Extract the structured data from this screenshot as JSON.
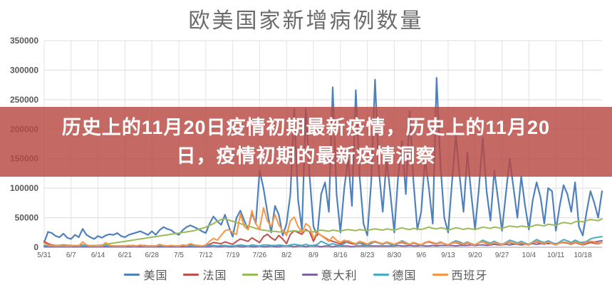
{
  "title": "欧美国家新增病例数量",
  "banner": {
    "line1": "历史上的11月20日疫情初期最新疫情，历史上的11月20",
    "line2": "日，疫情初期的最新疫情洞察",
    "background_color": "#b84842",
    "text_color": "#ffffff"
  },
  "axis_style": {
    "label_color": "#595959",
    "gridline_color": "#dcdcdc",
    "vertical_gridline_color": "#e3e3e3",
    "zero_line_color": "#bdbdbd"
  },
  "chart_data": {
    "type": "line",
    "title": "欧美国家新增病例数量",
    "xlabel": "",
    "ylabel": "",
    "ylim": [
      0,
      350000
    ],
    "y_ticks": [
      0,
      50000,
      100000,
      150000,
      200000,
      250000,
      300000,
      350000
    ],
    "grid": true,
    "legend_position": "bottom",
    "x_tick_labels": [
      "5/31",
      "6/7",
      "6/14",
      "6/21",
      "6/28",
      "7/5",
      "7/12",
      "7/19",
      "7/26",
      "8/2",
      "8/9",
      "8/16",
      "8/23",
      "8/30",
      "9/6",
      "9/13",
      "9/20",
      "9/27",
      "10/4",
      "10/11",
      "10/18"
    ],
    "x_tick_interval_days": 7,
    "series": [
      {
        "name": "美国",
        "color": "#4F81BD",
        "values": [
          8000,
          26000,
          24000,
          19000,
          17000,
          23000,
          16000,
          14000,
          21000,
          17000,
          31000,
          21000,
          17000,
          14000,
          19000,
          16000,
          20000,
          22000,
          21000,
          24000,
          19000,
          17000,
          21000,
          23000,
          25000,
          27000,
          24000,
          21000,
          27000,
          21000,
          29000,
          34000,
          31000,
          29000,
          24000,
          21000,
          29000,
          34000,
          37000,
          34000,
          31000,
          27000,
          24000,
          40000,
          52000,
          44000,
          38000,
          55000,
          35000,
          18000,
          50000,
          62000,
          45000,
          30000,
          58000,
          40000,
          130000,
          100000,
          60000,
          25000,
          70000,
          55000,
          20000,
          40000,
          90000,
          234000,
          80000,
          30000,
          235000,
          120000,
          35000,
          20000,
          90000,
          110000,
          60000,
          271000,
          90000,
          25000,
          100000,
          150000,
          70000,
          266000,
          120000,
          40000,
          20000,
          110000,
          284000,
          130000,
          60000,
          150000,
          90000,
          25000,
          120000,
          180000,
          90000,
          230000,
          110000,
          30000,
          60000,
          150000,
          100000,
          40000,
          287000,
          140000,
          50000,
          25000,
          110000,
          190000,
          120000,
          60000,
          160000,
          90000,
          30000,
          100000,
          185000,
          95000,
          45000,
          130000,
          80000,
          28000,
          90000,
          150000,
          100000,
          50000,
          120000,
          70000,
          30000,
          80000,
          110000,
          85000,
          40000,
          100000,
          95000,
          28000,
          70000,
          105000,
          90000,
          60000,
          110000,
          35000,
          20000,
          60000,
          95000,
          75000,
          50000,
          95000
        ]
      },
      {
        "name": "法国",
        "color": "#C0504D",
        "values": [
          10000,
          6000,
          4000,
          3000,
          3000,
          4000,
          3000,
          3000,
          2000,
          3000,
          4000,
          3000,
          2000,
          2000,
          2000,
          2000,
          3000,
          3000,
          2000,
          2000,
          2000,
          2000,
          2000,
          3000,
          2000,
          2000,
          3000,
          2000,
          2000,
          2000,
          3000,
          3000,
          2000,
          2000,
          2000,
          2000,
          3000,
          3000,
          4000,
          3000,
          3000,
          2000,
          3000,
          5000,
          8000,
          7000,
          6000,
          9000,
          7000,
          5000,
          10000,
          14000,
          12000,
          10000,
          16000,
          12000,
          8000,
          18000,
          22000,
          16000,
          12000,
          20000,
          14000,
          6000,
          22000,
          28000,
          25000,
          22000,
          30000,
          26000,
          10000,
          24000,
          20000,
          16000,
          12000,
          10000,
          8000,
          5000,
          9000,
          8000,
          6000,
          5000,
          7000,
          6000,
          4000,
          8000,
          9000,
          7000,
          5000,
          8000,
          6000,
          4000,
          7000,
          8000,
          6000,
          5000,
          7000,
          5000,
          4000,
          8000,
          9000,
          7000,
          5000,
          8000,
          6000,
          4000,
          7000,
          8000,
          6000,
          5000,
          7000,
          5000,
          4000,
          8000,
          9000,
          6000,
          5000,
          8000,
          6000,
          4000,
          7000,
          8000,
          6000,
          5000,
          7000,
          5000,
          4000,
          8000,
          9000,
          7000,
          5000,
          8000,
          6000,
          4000,
          7000,
          9000,
          7000,
          5000,
          8000,
          6000,
          4000,
          6000,
          8000,
          7000,
          6000,
          8000
        ]
      },
      {
        "name": "英国",
        "color": "#9BBB59",
        "values": [
          2000,
          2000,
          2000,
          2000,
          2000,
          2000,
          2000,
          2000,
          2000,
          2000,
          3000,
          3000,
          3000,
          3000,
          3000,
          4000,
          5000,
          6000,
          7000,
          8000,
          9000,
          10000,
          11000,
          12000,
          13000,
          14000,
          15000,
          16000,
          17000,
          18000,
          19000,
          20000,
          21000,
          22000,
          23000,
          24000,
          25000,
          26000,
          27000,
          28000,
          30000,
          32000,
          34000,
          37000,
          40000,
          44000,
          47000,
          48000,
          46000,
          44000,
          42000,
          40000,
          38000,
          36000,
          34000,
          32000,
          30000,
          29000,
          28000,
          27000,
          27000,
          26000,
          26000,
          25000,
          27000,
          28000,
          27000,
          26000,
          28000,
          27000,
          26000,
          28000,
          29000,
          28000,
          27000,
          29000,
          28000,
          27000,
          29000,
          30000,
          29000,
          28000,
          30000,
          29000,
          28000,
          30000,
          31000,
          30000,
          29000,
          31000,
          30000,
          29000,
          31000,
          33000,
          31000,
          30000,
          32000,
          31000,
          30000,
          32000,
          34000,
          32000,
          31000,
          33000,
          32000,
          29000,
          31000,
          33000,
          32000,
          30000,
          32000,
          31000,
          30000,
          32000,
          34000,
          33000,
          32000,
          34000,
          33000,
          32000,
          34000,
          36000,
          35000,
          34000,
          36000,
          35000,
          34000,
          36000,
          38000,
          37000,
          36000,
          39000,
          38000,
          37000,
          40000,
          42000,
          41000,
          40000,
          43000,
          44000,
          43000,
          45000,
          47000,
          46000,
          45000,
          48000
        ]
      },
      {
        "name": "意大利",
        "color": "#8064A2",
        "values": [
          1000,
          1000,
          1000,
          1000,
          1000,
          1000,
          1000,
          1000,
          1000,
          1000,
          1000,
          1000,
          1000,
          1000,
          1000,
          1000,
          1000,
          1000,
          1000,
          1000,
          1000,
          1000,
          1000,
          1000,
          1000,
          1000,
          1000,
          1000,
          1000,
          1000,
          1000,
          1000,
          1000,
          1000,
          1000,
          1000,
          1000,
          1000,
          1000,
          1000,
          1000,
          1000,
          1000,
          1000,
          2000,
          1000,
          1000,
          2000,
          1000,
          1000,
          2000,
          1000,
          1000,
          2000,
          1000,
          1000,
          2000,
          1000,
          1000,
          2000,
          1000,
          1000,
          2000,
          2000,
          2000,
          1000,
          2000,
          2000,
          1000,
          2000,
          2000,
          2000,
          1000,
          2000,
          2000,
          1000,
          2000,
          2000,
          2000,
          2000,
          1000,
          2000,
          2000,
          2000,
          2000,
          2000,
          2000,
          2000,
          2000,
          2000,
          2000,
          2000,
          3000,
          2000,
          2000,
          3000,
          2000,
          2000,
          3000,
          2000,
          2000,
          3000,
          2000,
          3000,
          3000,
          3000,
          3000,
          2000,
          3000,
          3000,
          3000,
          4000,
          3000,
          4000,
          4000,
          3000,
          4000,
          5000,
          4000,
          4000,
          5000,
          4000,
          5000,
          5000,
          4000,
          5000,
          5000,
          6000,
          5000,
          6000,
          7000,
          6000,
          7000,
          6000,
          7000,
          8000,
          7000,
          8000,
          9000,
          8000,
          8000,
          9000,
          10000,
          9000,
          10000,
          11000
        ]
      },
      {
        "name": "德国",
        "color": "#4BACC6",
        "values": [
          3000,
          2000,
          2000,
          3000,
          2000,
          2000,
          2000,
          2000,
          3000,
          2000,
          2000,
          3000,
          2000,
          2000,
          2000,
          2000,
          3000,
          2000,
          2000,
          2000,
          2000,
          2000,
          3000,
          2000,
          2000,
          3000,
          2000,
          2000,
          2000,
          2000,
          3000,
          2000,
          2000,
          3000,
          2000,
          2000,
          3000,
          2000,
          3000,
          2000,
          2000,
          2000,
          2000,
          3000,
          3000,
          2000,
          3000,
          3000,
          2000,
          2000,
          3000,
          4000,
          3000,
          2000,
          4000,
          3000,
          2000,
          4000,
          4000,
          3000,
          3000,
          4000,
          3000,
          2000,
          4000,
          5000,
          4000,
          3000,
          5000,
          3000,
          3000,
          5000,
          10000,
          7000,
          4000,
          6000,
          4000,
          3000,
          6000,
          11000,
          8000,
          5000,
          7000,
          4000,
          3000,
          6000,
          10000,
          7000,
          5000,
          8000,
          5000,
          3000,
          7000,
          11000,
          8000,
          5000,
          8000,
          5000,
          4000,
          7000,
          10000,
          8000,
          6000,
          9000,
          6000,
          4000,
          8000,
          11000,
          9000,
          6000,
          9000,
          6000,
          4000,
          8000,
          12000,
          9000,
          7000,
          10000,
          7000,
          5000,
          8000,
          12000,
          10000,
          7000,
          10000,
          7000,
          5000,
          9000,
          13000,
          10000,
          8000,
          11000,
          8000,
          5000,
          9000,
          13000,
          11000,
          8000,
          12000,
          9000,
          6000,
          10000,
          14000,
          16000,
          17000,
          18000
        ]
      },
      {
        "name": "西班牙",
        "color": "#F79646",
        "values": [
          7000,
          4000,
          3000,
          2000,
          2000,
          3000,
          2000,
          2000,
          3000,
          2000,
          9000,
          4000,
          2000,
          2000,
          2000,
          2000,
          8000,
          3000,
          2000,
          2000,
          2000,
          2000,
          3000,
          2000,
          2000,
          4000,
          2000,
          2000,
          2000,
          2000,
          5000,
          3000,
          2000,
          3000,
          2000,
          2000,
          4000,
          3000,
          6000,
          4000,
          3000,
          2000,
          4000,
          10000,
          15000,
          12000,
          20000,
          28000,
          30000,
          25000,
          22000,
          56000,
          35000,
          30000,
          62000,
          40000,
          30000,
          67000,
          45000,
          35000,
          55000,
          38000,
          28000,
          20000,
          45000,
          51000,
          35000,
          25000,
          40000,
          35000,
          15000,
          25000,
          20000,
          15000,
          10000,
          18000,
          12000,
          8000,
          12000,
          10000,
          8000,
          6000,
          10000,
          8000,
          5000,
          9000,
          10000,
          8000,
          6000,
          9000,
          7000,
          5000,
          8000,
          9000,
          7000,
          5000,
          8000,
          6000,
          4000,
          8000,
          10000,
          8000,
          5000,
          9000,
          6000,
          4000,
          7000,
          9000,
          7000,
          5000,
          8000,
          5000,
          4000,
          8000,
          9000,
          7000,
          5000,
          8000,
          6000,
          4000,
          7000,
          9000,
          7000,
          5000,
          8000,
          5000,
          4000,
          8000,
          10000,
          8000,
          6000,
          9000,
          6000,
          4000,
          7000,
          9000,
          8000,
          6000,
          9000,
          7000,
          5000,
          8000,
          10000,
          9000,
          7000,
          8000
        ]
      }
    ]
  }
}
